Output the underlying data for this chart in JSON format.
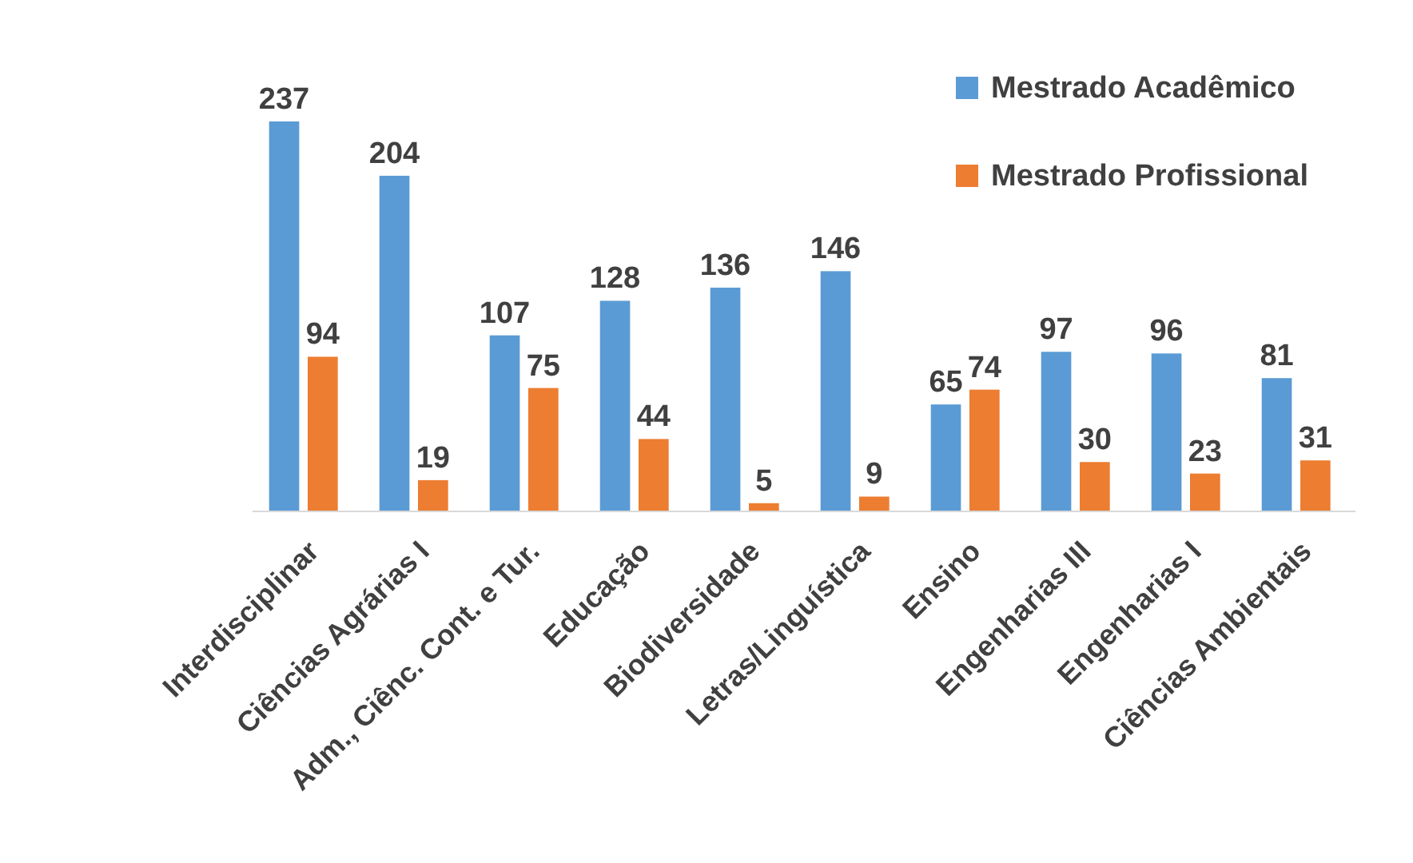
{
  "chart_data": {
    "type": "bar",
    "categories": [
      "Interdisciplinar",
      "Ciências Agrárias I",
      "Adm., Ciênc. Cont. e Tur.",
      "Educação",
      "Biodiversidade",
      "Letras/Linguística",
      "Ensino",
      "Engenharias III",
      "Engenharias I",
      "Ciências Ambientais"
    ],
    "series": [
      {
        "name": "Mestrado Acadêmico",
        "color": "#5b9bd5",
        "values": [
          237,
          204,
          107,
          128,
          136,
          146,
          65,
          97,
          96,
          81
        ]
      },
      {
        "name": "Mestrado Profissional",
        "color": "#ed7d31",
        "values": [
          94,
          19,
          75,
          44,
          5,
          9,
          74,
          30,
          23,
          31
        ]
      }
    ],
    "data_labels": true,
    "legend": "top right"
  }
}
